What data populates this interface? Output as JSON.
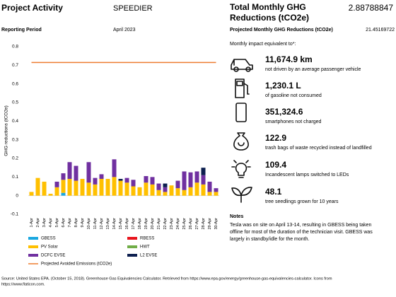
{
  "header": {
    "title": "Project Activity",
    "project": "SPEEDIER",
    "period_label": "Reporting Period",
    "period": "April 2023"
  },
  "summary": {
    "total_label": "Total Monthly GHG Reductions (tCO2e)",
    "total_value": "2.88788847",
    "projected_label": "Projected Monthly GHG Reductions (tCO2e)",
    "projected_value": "21.45169722",
    "impact_label": "Monthly impact equivalent to*:"
  },
  "equivalents": [
    {
      "value": "11,674.9 km",
      "label": "not driven by an average passenger vehicle"
    },
    {
      "value": "1,230.1 L",
      "label": "of gasoline not consumed"
    },
    {
      "value": "351,324.6",
      "label": "smartphones not charged"
    },
    {
      "value": "122.9",
      "label": "trash bags of waste recycled instead of landfilled"
    },
    {
      "value": "109.4",
      "label": "Incandescent lamps switched to LEDs"
    },
    {
      "value": "48.1",
      "label": "tree seedlings grown for 10 years"
    }
  ],
  "notes": {
    "title": "Notes",
    "lines": [
      "Tesla was on site on April 13-14, resulting in GBESS being taken",
      "offline for most of the duration of the technician visit. GBESS was",
      "largely in standby/idle for the month."
    ]
  },
  "source": [
    "Source: United States EPA. (October 15, 2018). Greenhouse Gas Equivalencies Calculator. Retrieved from https://www.epa.gov/energy/greenhouse-gas-equivalencies-calculator. Icons from",
    "https://www.flaticon.com."
  ],
  "chart_data": {
    "type": "bar",
    "stacked": true,
    "y_label": "GHG reductions (tCO2e)",
    "categories": [
      "1-Apr",
      "2-Apr",
      "3-Apr",
      "4-Apr",
      "5-Apr",
      "6-Apr",
      "7-Apr",
      "8-Apr",
      "9-Apr",
      "10-Apr",
      "11-Apr",
      "12-Apr",
      "13-Apr",
      "14-Apr",
      "15-Apr",
      "16-Apr",
      "17-Apr",
      "18-Apr",
      "19-Apr",
      "20-Apr",
      "21-Apr",
      "22-Apr",
      "23-Apr",
      "24-Apr",
      "25-Apr",
      "26-Apr",
      "27-Apr",
      "28-Apr",
      "29-Apr",
      "30-Apr"
    ],
    "series": [
      {
        "name": "GBESS",
        "color": "#1aa7e0",
        "values": [
          0,
          0,
          0,
          0,
          0,
          0.015,
          0,
          0,
          0,
          0,
          0,
          0,
          0,
          0,
          0,
          0,
          0,
          0,
          0,
          0,
          0,
          0,
          0,
          0,
          0,
          0,
          0,
          0,
          0,
          0
        ]
      },
      {
        "name": "RBESS",
        "color": "#e8141c",
        "values": [
          0,
          0,
          0,
          0,
          0,
          0,
          0,
          0,
          0,
          0,
          0,
          0,
          0,
          0,
          0,
          0,
          0,
          0,
          0,
          0,
          0,
          0,
          0,
          0,
          0,
          0,
          0,
          0,
          0,
          0
        ]
      },
      {
        "name": "PV Solar",
        "color": "#ffc000",
        "values": [
          0.02,
          0.095,
          0.075,
          0.01,
          0.045,
          0.07,
          0.09,
          0.08,
          0.09,
          0.07,
          0.06,
          0.09,
          0.09,
          0.1,
          0.08,
          0.07,
          0.05,
          0.045,
          0.07,
          0.06,
          0.03,
          0.02,
          0.055,
          0.04,
          0.03,
          0.045,
          0.07,
          0.06,
          0.02,
          0.02
        ]
      },
      {
        "name": "HWT",
        "color": "#70ad47",
        "values": [
          0,
          0,
          0,
          0,
          0,
          0,
          0,
          0,
          0,
          0,
          0,
          0,
          0,
          0,
          0,
          0,
          0,
          0,
          0,
          0,
          0,
          0,
          0,
          0,
          0,
          0,
          0,
          0,
          0,
          0
        ]
      },
      {
        "name": "DCFC EVSE",
        "color": "#7030a0",
        "values": [
          0,
          0,
          0,
          0,
          0.03,
          0.035,
          0.09,
          0.08,
          0,
          0.11,
          0.035,
          0.025,
          0,
          0.095,
          0,
          0.025,
          0.035,
          0,
          0.035,
          0.04,
          0.035,
          0.025,
          0,
          0.04,
          0.1,
          0.08,
          0.06,
          0.05,
          0.055,
          0.02
        ]
      },
      {
        "name": "L2 EVSE",
        "color": "#0d1f4f",
        "values": [
          0,
          0,
          0,
          0,
          0,
          0,
          0,
          0,
          0,
          0,
          0,
          0,
          0,
          0,
          0.01,
          0,
          0,
          0,
          0,
          0,
          0,
          0.02,
          0,
          0,
          0,
          0,
          0,
          0.04,
          0,
          0
        ]
      },
      {
        "name": "Projected Avoided Emissions (tCO2e)",
        "type": "line",
        "color": "#ed7d31",
        "values": [
          0.715,
          0.715,
          0.715,
          0.715,
          0.715,
          0.715,
          0.715,
          0.715,
          0.715,
          0.715,
          0.715,
          0.715,
          0.715,
          0.715,
          0.715,
          0.715,
          0.715,
          0.715,
          0.715,
          0.715,
          0.715,
          0.715,
          0.715,
          0.715,
          0.715,
          0.715,
          0.715,
          0.715,
          0.715,
          0.715
        ]
      }
    ],
    "ylim": [
      -0.1,
      0.8
    ],
    "yticks": [
      -0.1,
      0,
      0.1,
      0.2,
      0.3,
      0.4,
      0.5,
      0.6,
      0.7,
      0.8
    ]
  }
}
